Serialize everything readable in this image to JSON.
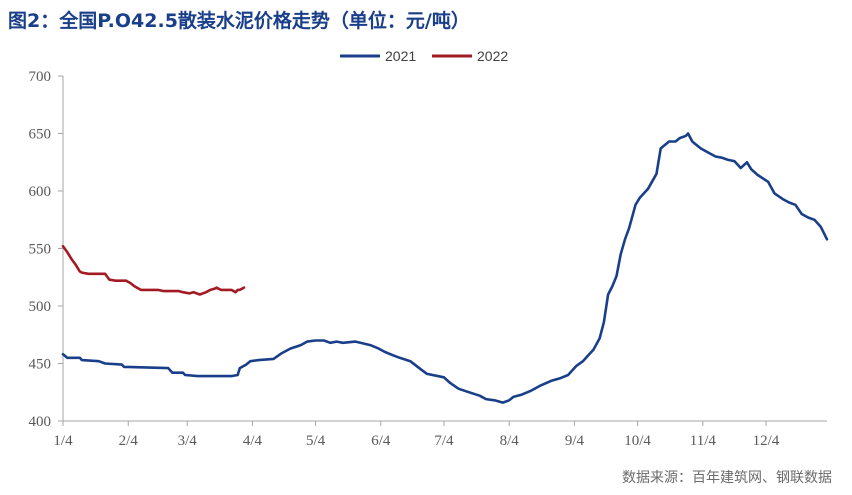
{
  "header": {
    "figure_label": "图2：",
    "title": "全国P.O42.5散装水泥价格走势（单位：元/吨）"
  },
  "source": "数据来源：百年建筑网、钢联数据",
  "chart_data": {
    "type": "line",
    "title": "全国P.O42.5散装水泥价格走势（单位：元/吨）",
    "xlabel": "",
    "ylabel": "",
    "ylim": [
      400,
      700
    ],
    "yticks": [
      400,
      450,
      500,
      550,
      600,
      650,
      700
    ],
    "xlim_day": [
      0,
      363
    ],
    "xticks": [
      {
        "label": "1/4",
        "day": 0
      },
      {
        "label": "2/4",
        "day": 31
      },
      {
        "label": "3/4",
        "day": 59
      },
      {
        "label": "4/4",
        "day": 90
      },
      {
        "label": "5/4",
        "day": 120
      },
      {
        "label": "6/4",
        "day": 151
      },
      {
        "label": "7/4",
        "day": 181
      },
      {
        "label": "8/4",
        "day": 212
      },
      {
        "label": "9/4",
        "day": 243
      },
      {
        "label": "10/4",
        "day": 273
      },
      {
        "label": "11/4",
        "day": 304
      },
      {
        "label": "12/4",
        "day": 334
      }
    ],
    "grid": false,
    "legend_position": "top",
    "series": [
      {
        "name": "2021",
        "color": "#1a3f8a",
        "points": [
          [
            0,
            458
          ],
          [
            2,
            455
          ],
          [
            8,
            455
          ],
          [
            9,
            453
          ],
          [
            17,
            452
          ],
          [
            20,
            450
          ],
          [
            28,
            449
          ],
          [
            29,
            447
          ],
          [
            50,
            446
          ],
          [
            52,
            442
          ],
          [
            57,
            442
          ],
          [
            58,
            440
          ],
          [
            64,
            439
          ],
          [
            80,
            439
          ],
          [
            83,
            440
          ],
          [
            84,
            446
          ],
          [
            87,
            449
          ],
          [
            89,
            452
          ],
          [
            93,
            453
          ],
          [
            100,
            454
          ],
          [
            104,
            459
          ],
          [
            108,
            463
          ],
          [
            113,
            466
          ],
          [
            116,
            469
          ],
          [
            120,
            470
          ],
          [
            124,
            470
          ],
          [
            127,
            468
          ],
          [
            130,
            469
          ],
          [
            133,
            468
          ],
          [
            139,
            469
          ],
          [
            146,
            466
          ],
          [
            150,
            463
          ],
          [
            153,
            460
          ],
          [
            157,
            457
          ],
          [
            160,
            455
          ],
          [
            165,
            452
          ],
          [
            170,
            445
          ],
          [
            173,
            441
          ],
          [
            181,
            438
          ],
          [
            184,
            433
          ],
          [
            188,
            428
          ],
          [
            193,
            425
          ],
          [
            198,
            422
          ],
          [
            201,
            419
          ],
          [
            205,
            418
          ],
          [
            209,
            416
          ],
          [
            212,
            418
          ],
          [
            214,
            421
          ],
          [
            218,
            423
          ],
          [
            222,
            426
          ],
          [
            227,
            431
          ],
          [
            232,
            435
          ],
          [
            236,
            437
          ],
          [
            240,
            440
          ],
          [
            244,
            448
          ],
          [
            247,
            452
          ],
          [
            250,
            458
          ],
          [
            252,
            462
          ],
          [
            255,
            472
          ],
          [
            257,
            486
          ],
          [
            259,
            510
          ],
          [
            261,
            517
          ],
          [
            263,
            526
          ],
          [
            265,
            545
          ],
          [
            267,
            558
          ],
          [
            269,
            568
          ],
          [
            272,
            588
          ],
          [
            274,
            594
          ],
          [
            278,
            602
          ],
          [
            282,
            615
          ],
          [
            284,
            637
          ],
          [
            288,
            643
          ],
          [
            291,
            643
          ],
          [
            293,
            646
          ],
          [
            296,
            648
          ],
          [
            297,
            650
          ],
          [
            299,
            643
          ],
          [
            301,
            640
          ],
          [
            303,
            637
          ],
          [
            306,
            634
          ],
          [
            310,
            630
          ],
          [
            313,
            629
          ],
          [
            316,
            627
          ],
          [
            319,
            626
          ],
          [
            322,
            620
          ],
          [
            325,
            625
          ],
          [
            327,
            619
          ],
          [
            330,
            614
          ],
          [
            335,
            608
          ],
          [
            338,
            598
          ],
          [
            342,
            593
          ],
          [
            345,
            590
          ],
          [
            348,
            588
          ],
          [
            351,
            580
          ],
          [
            354,
            577
          ],
          [
            357,
            575
          ],
          [
            360,
            569
          ],
          [
            363,
            558
          ]
        ]
      },
      {
        "name": "2022",
        "color": "#a31a22",
        "points": [
          [
            0,
            552
          ],
          [
            2,
            547
          ],
          [
            4,
            541
          ],
          [
            6,
            536
          ],
          [
            8,
            530
          ],
          [
            9,
            529
          ],
          [
            12,
            528
          ],
          [
            20,
            528
          ],
          [
            22,
            523
          ],
          [
            25,
            522
          ],
          [
            30,
            522
          ],
          [
            32,
            520
          ],
          [
            34,
            517
          ],
          [
            37,
            514
          ],
          [
            45,
            514
          ],
          [
            48,
            513
          ],
          [
            55,
            513
          ],
          [
            57,
            512
          ],
          [
            60,
            511
          ],
          [
            62,
            512
          ],
          [
            65,
            510
          ],
          [
            68,
            512
          ],
          [
            70,
            514
          ],
          [
            72,
            515
          ],
          [
            73,
            516
          ],
          [
            75,
            514
          ],
          [
            80,
            514
          ],
          [
            82,
            512
          ],
          [
            83,
            514
          ],
          [
            84,
            514
          ],
          [
            85,
            515
          ],
          [
            86,
            516
          ]
        ]
      }
    ]
  }
}
